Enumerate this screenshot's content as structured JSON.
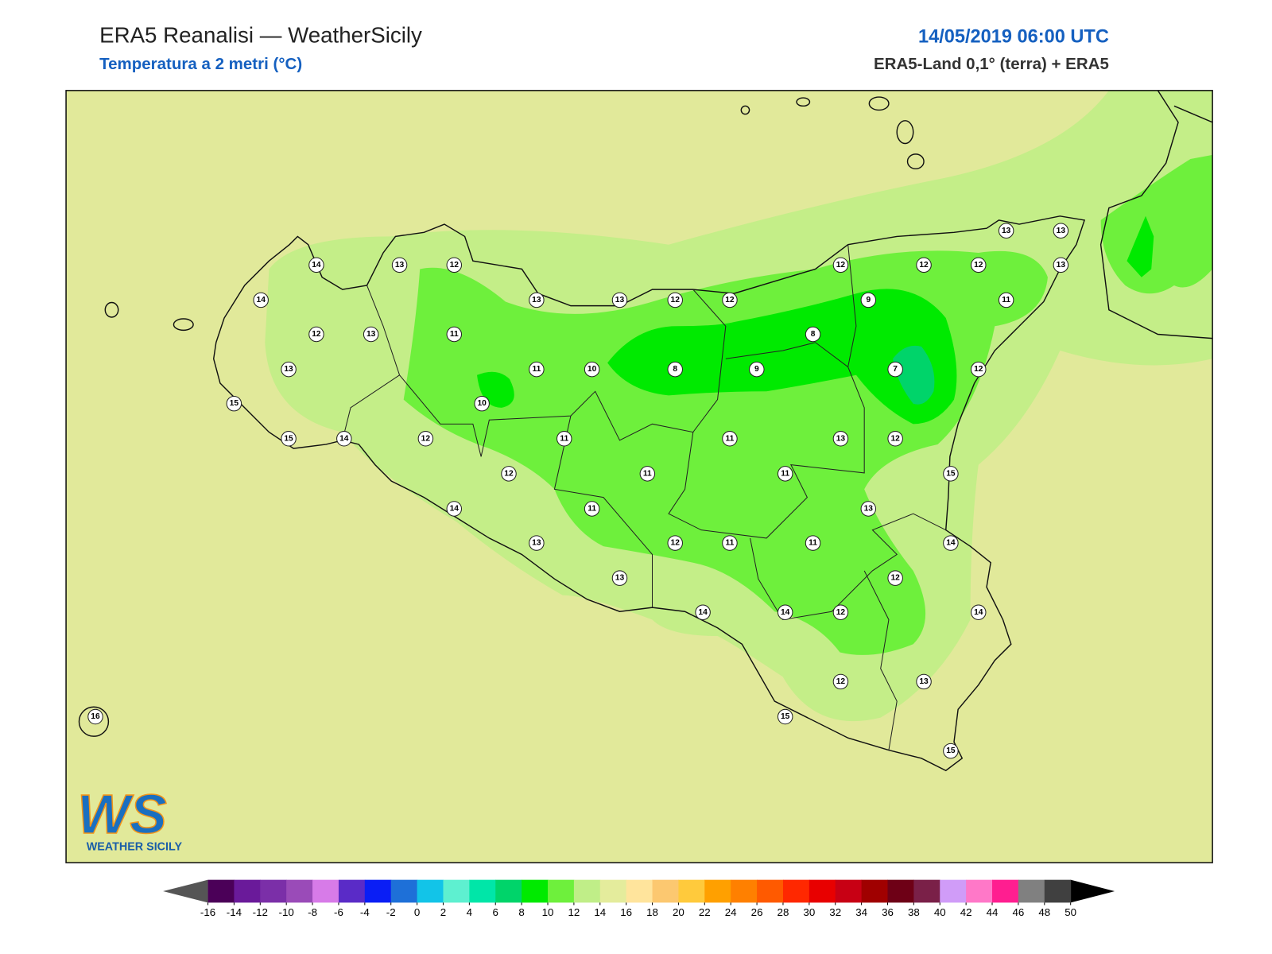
{
  "header": {
    "title": "ERA5 Reanalisi — WeatherSicily",
    "subtitle": "Temperatura a 2 metri (°C)",
    "datetime": "14/05/2019 06:00 UTC",
    "source": "ERA5-Land 0,1° (terra) + ERA5"
  },
  "stations": [
    14,
    13,
    12,
    14,
    12,
    13,
    11,
    13,
    15,
    15,
    14,
    12,
    13,
    13,
    12,
    12,
    11,
    10,
    8,
    9,
    10,
    8,
    9,
    12,
    12,
    12,
    13,
    13,
    13,
    11,
    7,
    12,
    11,
    11,
    13,
    12,
    12,
    11,
    11,
    15,
    14,
    11,
    13,
    13,
    12,
    11,
    11,
    14,
    13,
    12,
    14,
    14,
    12,
    14,
    12,
    13,
    15,
    15,
    16
  ],
  "colorbar": {
    "ticks": [
      -16,
      -14,
      -12,
      -10,
      -8,
      -6,
      -4,
      -2,
      0,
      2,
      4,
      6,
      8,
      10,
      12,
      14,
      16,
      18,
      20,
      22,
      24,
      26,
      28,
      30,
      32,
      34,
      36,
      38,
      40,
      42,
      44,
      46,
      48,
      50
    ],
    "colors": [
      "#4b0058",
      "#6a1a9a",
      "#7b2fa8",
      "#9a4bb8",
      "#d77be8",
      "#5a2bc7",
      "#0a1ef5",
      "#1e70d8",
      "#12c4e8",
      "#5ef0d0",
      "#00e6a8",
      "#00d46a",
      "#00ea00",
      "#6ef03c",
      "#c0ee88",
      "#e4ec9c",
      "#ffe49c",
      "#fcc870",
      "#ffca3c",
      "#ffa000",
      "#ff8000",
      "#ff5a00",
      "#ff2800",
      "#e80000",
      "#c80014",
      "#a00000",
      "#6e0016",
      "#7a2048",
      "#d09cf8",
      "#ff78c8",
      "#ff1e90",
      "#808080",
      "#404040"
    ],
    "under_color": "#555555",
    "over_color": "#000000"
  },
  "logo": {
    "letters": "WS",
    "name": "WEATHER SICILY"
  }
}
